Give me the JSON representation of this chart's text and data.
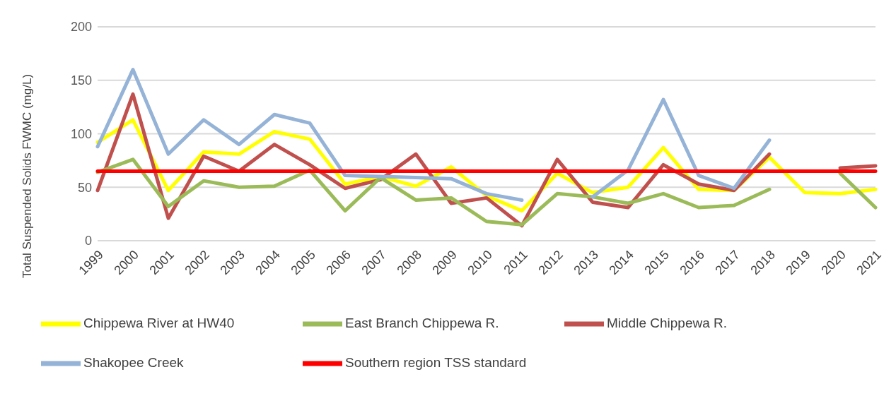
{
  "chart_data": {
    "type": "line",
    "ylabel": "Total Suspended Solids FWMC (mg/L)",
    "categories": [
      "1999",
      "2000",
      "2001",
      "2002",
      "2003",
      "2004",
      "2005",
      "2006",
      "2007",
      "2008",
      "2009",
      "2010",
      "2011",
      "2012",
      "2013",
      "2014",
      "2015",
      "2016",
      "2017",
      "2018",
      "2019",
      "2020",
      "2021"
    ],
    "series": [
      {
        "name": "Chippewa River at HW40",
        "color": "#ffff00",
        "values": [
          92,
          113,
          47,
          83,
          81,
          102,
          95,
          53,
          60,
          51,
          69,
          42,
          28,
          63,
          45,
          50,
          87,
          48,
          47,
          78,
          45,
          44,
          48
        ]
      },
      {
        "name": "Middle Chippewa R.",
        "color": "#c0504d",
        "values": [
          47,
          137,
          21,
          79,
          65,
          90,
          71,
          49,
          57,
          81,
          35,
          40,
          14,
          76,
          36,
          31,
          71,
          53,
          47,
          81,
          null,
          68,
          70
        ]
      },
      {
        "name": "East Branch Chippewa R.",
        "color": "#9bbb59",
        "values": [
          64,
          76,
          32,
          56,
          50,
          51,
          66,
          28,
          59,
          38,
          40,
          18,
          15,
          44,
          41,
          35,
          44,
          31,
          33,
          48,
          null,
          63,
          31
        ]
      },
      {
        "name": "Shakopee Creek",
        "color": "#95b3d7",
        "values": [
          88,
          160,
          81,
          113,
          90,
          118,
          110,
          61,
          60,
          59,
          58,
          44,
          38,
          null,
          41,
          66,
          132,
          61,
          49,
          94,
          null,
          null,
          null
        ]
      },
      {
        "name": "Southern region TSS standard",
        "color": "#ff0000",
        "values": [
          65,
          65,
          65,
          65,
          65,
          65,
          65,
          65,
          65,
          65,
          65,
          65,
          65,
          65,
          65,
          65,
          65,
          65,
          65,
          65,
          65,
          65,
          65
        ]
      }
    ],
    "ylim": [
      0,
      200
    ],
    "yticks": [
      0,
      50,
      100,
      150,
      200
    ],
    "grid": "y",
    "legend": "bottom",
    "marker": "none",
    "line_style": "solid"
  }
}
